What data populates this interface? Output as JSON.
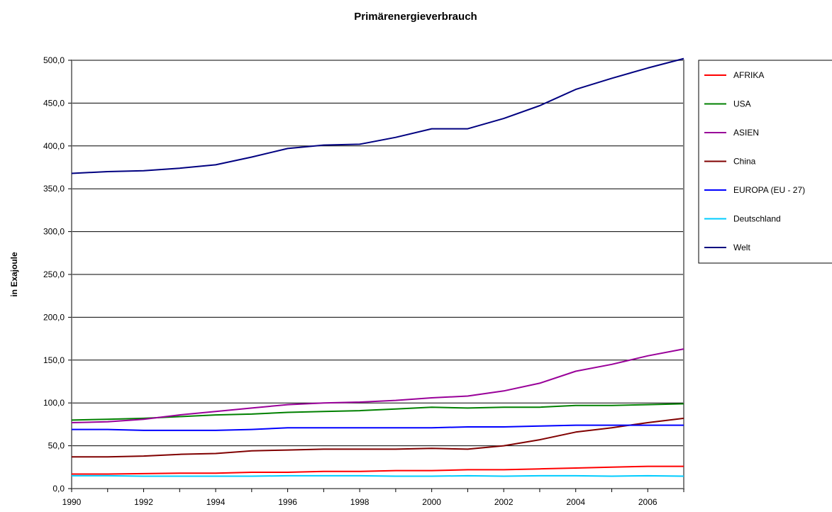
{
  "chart_data": {
    "type": "line",
    "title": "Primärenergieverbrauch",
    "xlabel": "",
    "ylabel": "in Exajoule",
    "xlim": [
      1990,
      2007
    ],
    "ylim": [
      0,
      500
    ],
    "x_ticks": [
      "1990",
      "1992",
      "1994",
      "1996",
      "1998",
      "2000",
      "2002",
      "2004",
      "2006"
    ],
    "y_ticks": [
      "0,0",
      "50,0",
      "100,0",
      "150,0",
      "200,0",
      "250,0",
      "300,0",
      "350,0",
      "400,0",
      "450,0",
      "500,0"
    ],
    "grid": true,
    "legend_position": "right",
    "x": [
      1990,
      1991,
      1992,
      1993,
      1994,
      1995,
      1996,
      1997,
      1998,
      1999,
      2000,
      2001,
      2002,
      2003,
      2004,
      2005,
      2006,
      2007
    ],
    "series": [
      {
        "name": "AFRIKA",
        "color": "#ff0000",
        "values": [
          17,
          17,
          17.5,
          18,
          18,
          19,
          19,
          20,
          20,
          21,
          21,
          22,
          22,
          23,
          24,
          25,
          26,
          26
        ]
      },
      {
        "name": "USA",
        "color": "#008000",
        "values": [
          80,
          81,
          82,
          84,
          86,
          87,
          89,
          90,
          91,
          93,
          95,
          94,
          95,
          95,
          97,
          97,
          98,
          99
        ]
      },
      {
        "name": "ASIEN",
        "color": "#990099",
        "values": [
          77,
          78,
          81,
          86,
          90,
          94,
          98,
          100,
          101,
          103,
          106,
          108,
          114,
          123,
          137,
          145,
          155,
          163
        ]
      },
      {
        "name": "China",
        "color": "#800000",
        "values": [
          37,
          37,
          38,
          40,
          41,
          44,
          45,
          46,
          46,
          46,
          47,
          46,
          50,
          57,
          66,
          71,
          77,
          82
        ]
      },
      {
        "name": "EUROPA  (EU - 27)",
        "color": "#0000ff",
        "values": [
          69,
          69,
          68,
          68,
          68,
          69,
          71,
          71,
          71,
          71,
          71,
          72,
          72,
          73,
          74,
          74,
          74,
          74
        ]
      },
      {
        "name": "Deutschland",
        "color": "#00ccff",
        "values": [
          15,
          15,
          14.5,
          14.5,
          14.5,
          14.5,
          15,
          15,
          15,
          14.5,
          14.5,
          15,
          14.5,
          15,
          15,
          14.5,
          15,
          14.5
        ]
      },
      {
        "name": "Welt",
        "color": "#000080",
        "values": [
          368,
          370,
          371,
          374,
          378,
          387,
          397,
          401,
          402,
          410,
          420,
          420,
          432,
          447,
          466,
          479,
          491,
          502
        ]
      }
    ]
  }
}
